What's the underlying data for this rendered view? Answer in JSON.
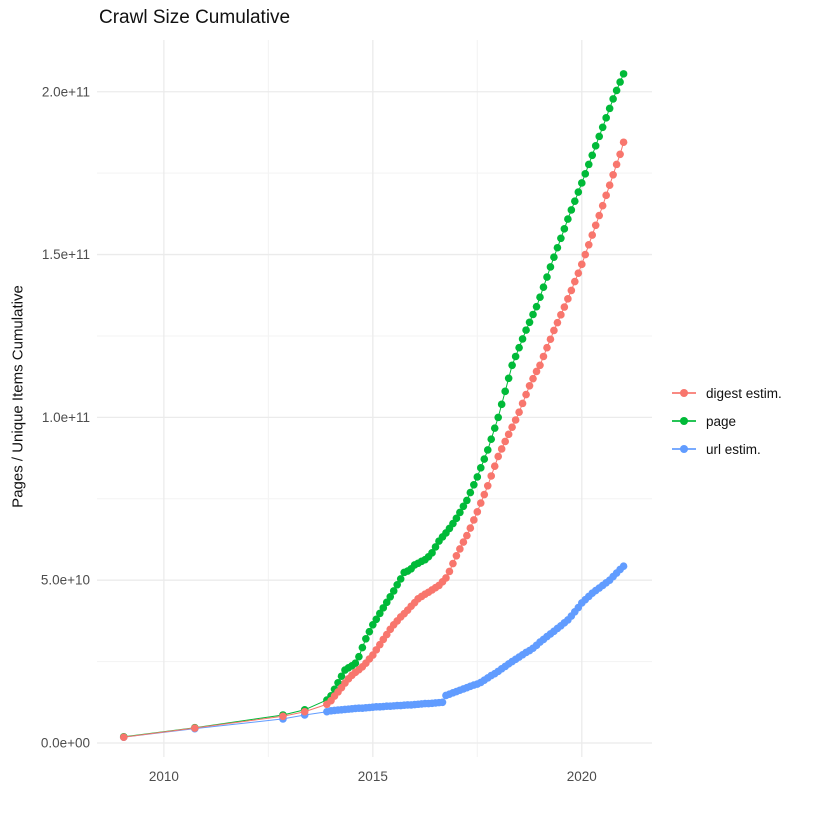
{
  "title": "Crawl Size Cumulative",
  "ylabel": "Pages / Unique Items Cumulative",
  "legend": {
    "items": [
      {
        "label": "digest estim.",
        "color": "#F8766D"
      },
      {
        "label": "page",
        "color": "#00BA38"
      },
      {
        "label": "url estim.",
        "color": "#619CFF"
      }
    ]
  },
  "colors": {
    "digest": "#F8766D",
    "page": "#00BA38",
    "url": "#619CFF",
    "grid_major": "#EBEBEB",
    "grid_minor": "#F3F3F3",
    "tick_text": "#4D4D4D"
  },
  "chart_data": {
    "type": "scatter",
    "title": "Crawl Size Cumulative",
    "xlabel": "",
    "ylabel": "Pages / Unique Items Cumulative",
    "y_unit": "items, values in billions (1e9)",
    "grid": true,
    "legend_position": "right",
    "xlim": [
      2008.4,
      2021.68
    ],
    "ylim": [
      -4.3,
      215.9
    ],
    "x_ticks": [
      2010,
      2015,
      2020
    ],
    "x_tick_labels": [
      "2010",
      "2015",
      "2020"
    ],
    "x_minor_ticks": [
      2012.5,
      2017.5
    ],
    "y_ticks": [
      0,
      50,
      100,
      150,
      200
    ],
    "y_tick_labels": [
      "0.0e+00",
      "5.0e+10",
      "1.0e+11",
      "1.5e+11",
      "2.0e+11"
    ],
    "y_minor_ticks": [
      25,
      75,
      125,
      175
    ],
    "series": [
      {
        "name": "digest estim.",
        "color": "#F8766D",
        "points": [
          [
            2009.04,
            1.8
          ],
          [
            2010.74,
            4.6
          ],
          [
            2012.85,
            8.2
          ],
          [
            2013.37,
            9.6
          ],
          [
            2013.9,
            11.9
          ],
          [
            2014,
            13
          ],
          [
            2014.083,
            14.4
          ],
          [
            2014.167,
            15.7
          ],
          [
            2014.25,
            17
          ],
          [
            2014.333,
            18.4
          ],
          [
            2014.417,
            19.7
          ],
          [
            2014.5,
            20.8
          ],
          [
            2014.583,
            21.7
          ],
          [
            2014.667,
            22.5
          ],
          [
            2014.75,
            23.4
          ],
          [
            2014.833,
            24.5
          ],
          [
            2014.917,
            25.8
          ],
          [
            2015,
            27
          ],
          [
            2015.083,
            28.6
          ],
          [
            2015.167,
            30.2
          ],
          [
            2015.25,
            31.8
          ],
          [
            2015.333,
            33.3
          ],
          [
            2015.417,
            34.9
          ],
          [
            2015.5,
            36.3
          ],
          [
            2015.583,
            37.5
          ],
          [
            2015.667,
            38.7
          ],
          [
            2015.75,
            39.7
          ],
          [
            2015.833,
            40.8
          ],
          [
            2015.917,
            42
          ],
          [
            2016,
            43.1
          ],
          [
            2016.083,
            44.3
          ],
          [
            2016.167,
            45
          ],
          [
            2016.25,
            45.7
          ],
          [
            2016.333,
            46.3
          ],
          [
            2016.417,
            47
          ],
          [
            2016.5,
            47.7
          ],
          [
            2016.583,
            48.4
          ],
          [
            2016.667,
            49.5
          ],
          [
            2016.75,
            50.7
          ],
          [
            2016.833,
            52.7
          ],
          [
            2016.917,
            55.1
          ],
          [
            2017,
            57.5
          ],
          [
            2017.083,
            59.6
          ],
          [
            2017.167,
            61.7
          ],
          [
            2017.25,
            63.7
          ],
          [
            2017.333,
            66
          ],
          [
            2017.417,
            68.5
          ],
          [
            2017.5,
            71
          ],
          [
            2017.583,
            73.7
          ],
          [
            2017.667,
            76.3
          ],
          [
            2017.75,
            79
          ],
          [
            2017.833,
            82
          ],
          [
            2017.917,
            85
          ],
          [
            2018,
            88
          ],
          [
            2018.083,
            90.3
          ],
          [
            2018.167,
            92.6
          ],
          [
            2018.25,
            94.8
          ],
          [
            2018.333,
            97
          ],
          [
            2018.417,
            99.2
          ],
          [
            2018.5,
            101.6
          ],
          [
            2018.583,
            104.3
          ],
          [
            2018.667,
            107
          ],
          [
            2018.75,
            109.7
          ],
          [
            2018.833,
            111.9
          ],
          [
            2018.917,
            114.1
          ],
          [
            2019,
            116
          ],
          [
            2019.083,
            118.7
          ],
          [
            2019.167,
            121.4
          ],
          [
            2019.25,
            124
          ],
          [
            2019.333,
            126.7
          ],
          [
            2019.417,
            129.1
          ],
          [
            2019.5,
            131.5
          ],
          [
            2019.583,
            133.9
          ],
          [
            2019.667,
            136.4
          ],
          [
            2019.75,
            139
          ],
          [
            2019.833,
            141.7
          ],
          [
            2019.917,
            144.3
          ],
          [
            2020,
            147
          ],
          [
            2020.083,
            150
          ],
          [
            2020.167,
            153
          ],
          [
            2020.25,
            156
          ],
          [
            2020.333,
            159
          ],
          [
            2020.417,
            162
          ],
          [
            2020.5,
            165
          ],
          [
            2020.583,
            168.2
          ],
          [
            2020.667,
            171.3
          ],
          [
            2020.75,
            174.5
          ],
          [
            2020.833,
            177.7
          ],
          [
            2020.917,
            180.8
          ],
          [
            2021,
            184.5
          ]
        ]
      },
      {
        "name": "page",
        "color": "#00BA38",
        "points": [
          [
            2009.04,
            1.9
          ],
          [
            2010.74,
            4.7
          ],
          [
            2012.85,
            8.6
          ],
          [
            2013.37,
            10.2
          ],
          [
            2013.9,
            13.2
          ],
          [
            2014,
            14.5
          ],
          [
            2014.083,
            16.5
          ],
          [
            2014.167,
            18.5
          ],
          [
            2014.25,
            20.5
          ],
          [
            2014.333,
            22.4
          ],
          [
            2014.417,
            23.1
          ],
          [
            2014.5,
            23.7
          ],
          [
            2014.583,
            24.5
          ],
          [
            2014.667,
            26.5
          ],
          [
            2014.75,
            29.3
          ],
          [
            2014.833,
            32
          ],
          [
            2014.917,
            34.2
          ],
          [
            2015,
            36.3
          ],
          [
            2015.083,
            38
          ],
          [
            2015.167,
            39.8
          ],
          [
            2015.25,
            41.5
          ],
          [
            2015.333,
            43.2
          ],
          [
            2015.417,
            44.9
          ],
          [
            2015.5,
            46.7
          ],
          [
            2015.583,
            48.6
          ],
          [
            2015.667,
            50.4
          ],
          [
            2015.75,
            52.4
          ],
          [
            2015.833,
            52.8
          ],
          [
            2015.917,
            53.5
          ],
          [
            2016,
            54.7
          ],
          [
            2016.083,
            55.2
          ],
          [
            2016.167,
            55.8
          ],
          [
            2016.25,
            56.3
          ],
          [
            2016.333,
            57.2
          ],
          [
            2016.417,
            58.4
          ],
          [
            2016.5,
            60.2
          ],
          [
            2016.583,
            62
          ],
          [
            2016.667,
            63.3
          ],
          [
            2016.75,
            64.5
          ],
          [
            2016.833,
            65.9
          ],
          [
            2016.917,
            67.4
          ],
          [
            2017,
            69
          ],
          [
            2017.083,
            70.8
          ],
          [
            2017.167,
            72.7
          ],
          [
            2017.25,
            74.5
          ],
          [
            2017.333,
            76.9
          ],
          [
            2017.417,
            79.3
          ],
          [
            2017.5,
            81.7
          ],
          [
            2017.583,
            84.5
          ],
          [
            2017.667,
            87.2
          ],
          [
            2017.75,
            90
          ],
          [
            2017.833,
            93.3
          ],
          [
            2017.917,
            96.7
          ],
          [
            2018,
            100
          ],
          [
            2018.083,
            104
          ],
          [
            2018.167,
            108
          ],
          [
            2018.25,
            112
          ],
          [
            2018.333,
            116
          ],
          [
            2018.417,
            118.7
          ],
          [
            2018.5,
            121.4
          ],
          [
            2018.583,
            124.1
          ],
          [
            2018.667,
            126.8
          ],
          [
            2018.75,
            129.2
          ],
          [
            2018.833,
            131.6
          ],
          [
            2018.917,
            134
          ],
          [
            2019,
            136.9
          ],
          [
            2019.083,
            140
          ],
          [
            2019.167,
            143.1
          ],
          [
            2019.25,
            146.2
          ],
          [
            2019.333,
            149.2
          ],
          [
            2019.417,
            152.1
          ],
          [
            2019.5,
            155
          ],
          [
            2019.583,
            157.9
          ],
          [
            2019.667,
            160.9
          ],
          [
            2019.75,
            163.7
          ],
          [
            2019.833,
            166.4
          ],
          [
            2019.917,
            169.2
          ],
          [
            2020,
            172
          ],
          [
            2020.083,
            174.8
          ],
          [
            2020.167,
            177.7
          ],
          [
            2020.25,
            180.5
          ],
          [
            2020.333,
            183.4
          ],
          [
            2020.417,
            186.3
          ],
          [
            2020.5,
            189.1
          ],
          [
            2020.583,
            192
          ],
          [
            2020.667,
            194.9
          ],
          [
            2020.75,
            197.8
          ],
          [
            2020.833,
            200.4
          ],
          [
            2020.917,
            203
          ],
          [
            2021,
            205.5
          ]
        ]
      },
      {
        "name": "url estim.",
        "color": "#619CFF",
        "points": [
          [
            2009.04,
            1.8
          ],
          [
            2010.74,
            4.4
          ],
          [
            2012.85,
            7.4
          ],
          [
            2013.37,
            8.6
          ],
          [
            2013.9,
            9.6
          ],
          [
            2014,
            9.9
          ],
          [
            2014.083,
            10
          ],
          [
            2014.167,
            10.1
          ],
          [
            2014.25,
            10.2
          ],
          [
            2014.333,
            10.3
          ],
          [
            2014.417,
            10.4
          ],
          [
            2014.5,
            10.5
          ],
          [
            2014.583,
            10.6
          ],
          [
            2014.667,
            10.7
          ],
          [
            2014.75,
            10.7
          ],
          [
            2014.833,
            10.8
          ],
          [
            2014.917,
            10.9
          ],
          [
            2015,
            11
          ],
          [
            2015.083,
            11.1
          ],
          [
            2015.167,
            11.1
          ],
          [
            2015.25,
            11.2
          ],
          [
            2015.333,
            11.3
          ],
          [
            2015.417,
            11.3
          ],
          [
            2015.5,
            11.4
          ],
          [
            2015.583,
            11.5
          ],
          [
            2015.667,
            11.5
          ],
          [
            2015.75,
            11.6
          ],
          [
            2015.833,
            11.7
          ],
          [
            2015.917,
            11.7
          ],
          [
            2016,
            11.8
          ],
          [
            2016.083,
            11.9
          ],
          [
            2016.167,
            12
          ],
          [
            2016.25,
            12.1
          ],
          [
            2016.333,
            12.1
          ],
          [
            2016.417,
            12.2
          ],
          [
            2016.5,
            12.3
          ],
          [
            2016.583,
            12.4
          ],
          [
            2016.667,
            12.5
          ],
          [
            2016.75,
            14.6
          ],
          [
            2016.833,
            15
          ],
          [
            2016.917,
            15.4
          ],
          [
            2017,
            15.8
          ],
          [
            2017.083,
            16.2
          ],
          [
            2017.167,
            16.6
          ],
          [
            2017.25,
            17
          ],
          [
            2017.333,
            17.4
          ],
          [
            2017.417,
            17.8
          ],
          [
            2017.5,
            18.1
          ],
          [
            2017.583,
            18.6
          ],
          [
            2017.667,
            19.3
          ],
          [
            2017.75,
            20
          ],
          [
            2017.833,
            20.7
          ],
          [
            2017.917,
            21.3
          ],
          [
            2018,
            22
          ],
          [
            2018.083,
            22.8
          ],
          [
            2018.167,
            23.5
          ],
          [
            2018.25,
            24.3
          ],
          [
            2018.333,
            25
          ],
          [
            2018.417,
            25.7
          ],
          [
            2018.5,
            26.4
          ],
          [
            2018.583,
            27.1
          ],
          [
            2018.667,
            27.8
          ],
          [
            2018.75,
            28.4
          ],
          [
            2018.833,
            29.1
          ],
          [
            2018.917,
            30
          ],
          [
            2019,
            31
          ],
          [
            2019.083,
            31.8
          ],
          [
            2019.167,
            32.7
          ],
          [
            2019.25,
            33.5
          ],
          [
            2019.333,
            34.3
          ],
          [
            2019.417,
            35.2
          ],
          [
            2019.5,
            36
          ],
          [
            2019.583,
            36.9
          ],
          [
            2019.667,
            37.8
          ],
          [
            2019.75,
            39
          ],
          [
            2019.833,
            40.3
          ],
          [
            2019.917,
            41.6
          ],
          [
            2020,
            43
          ],
          [
            2020.083,
            44
          ],
          [
            2020.167,
            45
          ],
          [
            2020.25,
            46
          ],
          [
            2020.333,
            46.8
          ],
          [
            2020.417,
            47.6
          ],
          [
            2020.5,
            48.4
          ],
          [
            2020.583,
            49.2
          ],
          [
            2020.667,
            50
          ],
          [
            2020.75,
            51.1
          ],
          [
            2020.833,
            52.2
          ],
          [
            2020.917,
            53.3
          ],
          [
            2021,
            54.3
          ]
        ]
      }
    ]
  }
}
